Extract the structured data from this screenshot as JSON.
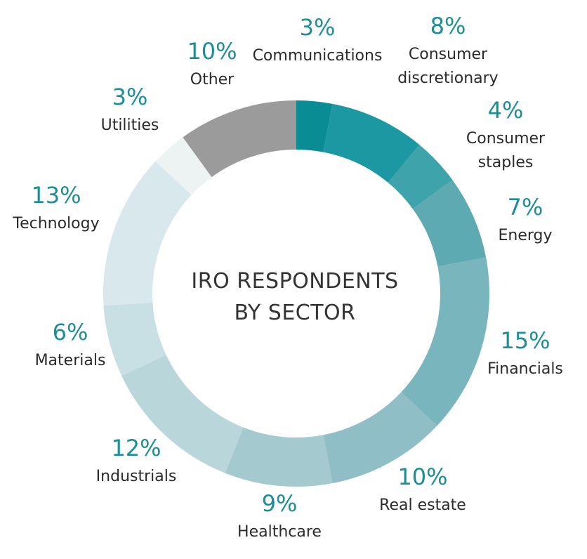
{
  "chart_data": {
    "type": "pie",
    "title": "IRO RESPONDENTS BY SECTOR",
    "title_lines": [
      "IRO RESPONDENTS",
      "BY SECTOR"
    ],
    "categories": [
      "Communications",
      "Consumer discretionary",
      "Consumer staples",
      "Energy",
      "Financials",
      "Real estate",
      "Healthcare",
      "Industrials",
      "Materials",
      "Technology",
      "Utilities",
      "Other"
    ],
    "values": [
      3,
      8,
      4,
      7,
      15,
      10,
      9,
      12,
      6,
      13,
      3,
      10
    ],
    "percent_labels": [
      "3%",
      "8%",
      "4%",
      "7%",
      "15%",
      "10%",
      "9%",
      "12%",
      "6%",
      "13%",
      "3%",
      "10%"
    ],
    "label_lines": [
      [
        "Communications"
      ],
      [
        "Consumer",
        "discretionary"
      ],
      [
        "Consumer",
        "staples"
      ],
      [
        "Energy"
      ],
      [
        "Financials"
      ],
      [
        "Real estate"
      ],
      [
        "Healthcare"
      ],
      [
        "Industrials"
      ],
      [
        "Materials"
      ],
      [
        "Technology"
      ],
      [
        "Utilities"
      ],
      [
        "Other"
      ]
    ],
    "colors": [
      "#0a8c94",
      "#1b98a1",
      "#3ea3aa",
      "#5eaab2",
      "#78b5bc",
      "#8fbec6",
      "#a4c9cf",
      "#b9d6da",
      "#c8e0e3",
      "#d9e8ec",
      "#edf2f3",
      "#9b9b9b"
    ],
    "donut": true,
    "legend": "none"
  }
}
